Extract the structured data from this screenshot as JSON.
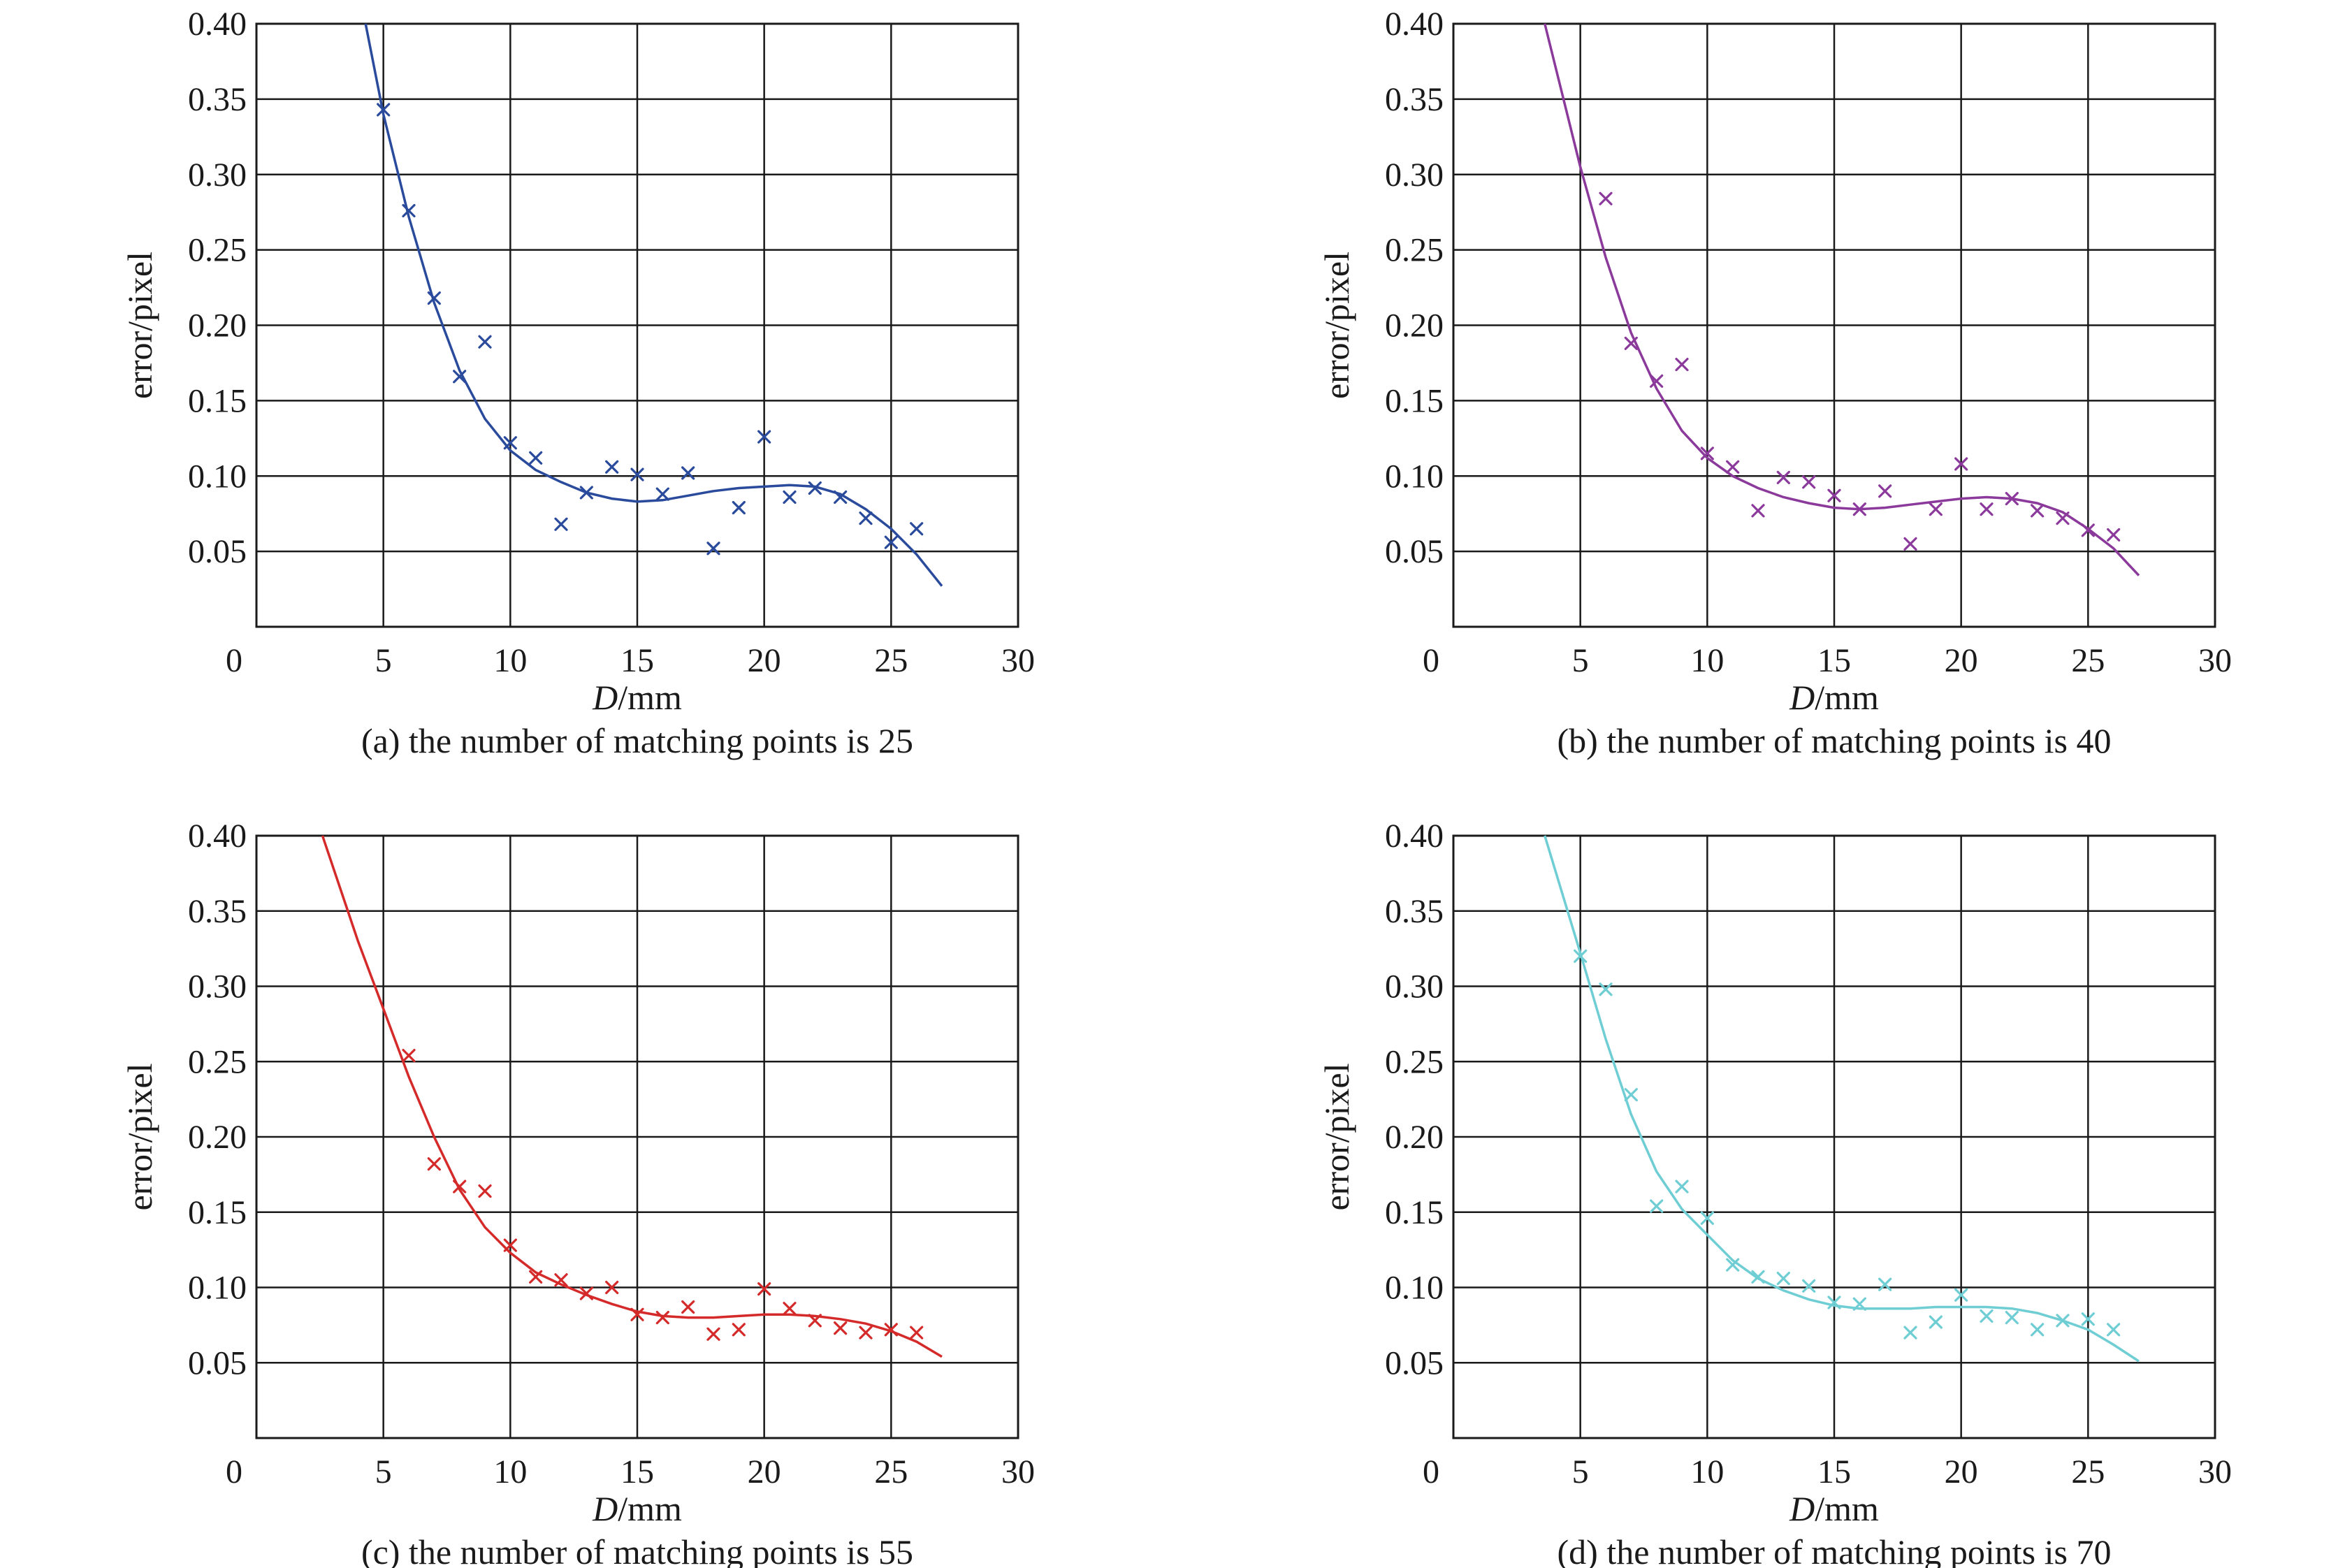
{
  "chart_data": [
    {
      "type": "scatter",
      "caption": "(a) the number of matching points is 25",
      "xlabel_italic": "D",
      "xlabel_unit": "/mm",
      "ylabel": "error/pixel",
      "xlim": [
        0,
        30
      ],
      "ylim": [
        0,
        0.4
      ],
      "xticks": [
        "0",
        "5",
        "10",
        "15",
        "20",
        "25",
        "30"
      ],
      "yticks": [
        "0.05",
        "0.10",
        "0.15",
        "0.20",
        "0.25",
        "0.30",
        "0.35",
        "0.40"
      ],
      "grid": true,
      "color": "#2a4a9c",
      "series": [
        {
          "x": [
            5,
            6,
            7,
            8,
            9,
            10,
            11,
            12,
            13,
            14,
            15,
            16,
            17,
            18,
            19,
            20,
            21,
            22,
            23,
            24,
            25,
            26
          ],
          "values": [
            0.343,
            0.276,
            0.218,
            0.166,
            0.189,
            0.122,
            0.112,
            0.068,
            0.089,
            0.106,
            0.101,
            0.088,
            0.102,
            0.052,
            0.079,
            0.126,
            0.086,
            0.092,
            0.086,
            0.072,
            0.056,
            0.065
          ]
        }
      ],
      "fit": {
        "x": [
          4.3,
          5,
          6,
          7,
          8,
          9,
          10,
          11,
          12,
          13,
          14,
          15,
          16,
          17,
          18,
          19,
          20,
          21,
          22,
          23,
          24,
          25,
          26,
          27
        ],
        "values": [
          0.4,
          0.34,
          0.272,
          0.215,
          0.17,
          0.138,
          0.117,
          0.104,
          0.096,
          0.089,
          0.085,
          0.083,
          0.084,
          0.087,
          0.09,
          0.092,
          0.093,
          0.094,
          0.093,
          0.088,
          0.078,
          0.065,
          0.048,
          0.027
        ]
      }
    },
    {
      "type": "scatter",
      "caption": "(b) the number of matching points is 40",
      "xlabel_italic": "D",
      "xlabel_unit": "/mm",
      "ylabel": "error/pixel",
      "xlim": [
        0,
        30
      ],
      "ylim": [
        0,
        0.4
      ],
      "xticks": [
        "0",
        "5",
        "10",
        "15",
        "20",
        "25",
        "30"
      ],
      "yticks": [
        "0.05",
        "0.10",
        "0.15",
        "0.20",
        "0.25",
        "0.30",
        "0.35",
        "0.40"
      ],
      "grid": true,
      "color": "#8b3a9c",
      "series": [
        {
          "x": [
            6,
            7,
            8,
            9,
            10,
            11,
            12,
            13,
            14,
            15,
            16,
            17,
            18,
            19,
            20,
            21,
            22,
            23,
            24,
            25,
            26
          ],
          "values": [
            0.284,
            0.188,
            0.163,
            0.174,
            0.115,
            0.106,
            0.077,
            0.099,
            0.096,
            0.087,
            0.078,
            0.09,
            0.055,
            0.078,
            0.108,
            0.078,
            0.085,
            0.077,
            0.072,
            0.064,
            0.061
          ]
        }
      ],
      "fit": {
        "x": [
          3.6,
          5,
          6,
          7,
          8,
          9,
          10,
          11,
          12,
          13,
          14,
          15,
          16,
          17,
          18,
          19,
          20,
          21,
          22,
          23,
          24,
          25,
          26,
          27
        ],
        "values": [
          0.4,
          0.305,
          0.245,
          0.195,
          0.158,
          0.13,
          0.112,
          0.1,
          0.092,
          0.086,
          0.082,
          0.079,
          0.078,
          0.079,
          0.081,
          0.083,
          0.085,
          0.086,
          0.085,
          0.082,
          0.076,
          0.065,
          0.052,
          0.034
        ]
      }
    },
    {
      "type": "scatter",
      "caption": "(c) the number of matching points is 55",
      "xlabel_italic": "D",
      "xlabel_unit": "/mm",
      "ylabel": "error/pixel",
      "xlim": [
        0,
        30
      ],
      "ylim": [
        0,
        0.4
      ],
      "xticks": [
        "0",
        "5",
        "10",
        "15",
        "20",
        "25",
        "30"
      ],
      "yticks": [
        "0.05",
        "0.10",
        "0.15",
        "0.20",
        "0.25",
        "0.30",
        "0.35",
        "0.40"
      ],
      "grid": true,
      "color": "#d42a2a",
      "series": [
        {
          "x": [
            6,
            7,
            8,
            9,
            10,
            11,
            12,
            13,
            14,
            15,
            16,
            17,
            18,
            19,
            20,
            21,
            22,
            23,
            24,
            25,
            26
          ],
          "values": [
            0.254,
            0.182,
            0.167,
            0.164,
            0.128,
            0.107,
            0.105,
            0.096,
            0.1,
            0.082,
            0.08,
            0.087,
            0.069,
            0.072,
            0.099,
            0.086,
            0.078,
            0.073,
            0.07,
            0.072,
            0.07
          ]
        }
      ],
      "fit": {
        "x": [
          2.6,
          4,
          5,
          6,
          7,
          8,
          9,
          10,
          11,
          12,
          13,
          14,
          15,
          16,
          17,
          18,
          19,
          20,
          21,
          22,
          23,
          24,
          25,
          26,
          27
        ],
        "values": [
          0.4,
          0.33,
          0.285,
          0.24,
          0.2,
          0.165,
          0.14,
          0.123,
          0.11,
          0.102,
          0.095,
          0.089,
          0.084,
          0.081,
          0.08,
          0.08,
          0.081,
          0.082,
          0.082,
          0.081,
          0.079,
          0.076,
          0.071,
          0.064,
          0.054
        ]
      }
    },
    {
      "type": "scatter",
      "caption": "(d) the number of matching points is 70",
      "xlabel_italic": "D",
      "xlabel_unit": "/mm",
      "ylabel": "error/pixel",
      "xlim": [
        0,
        30
      ],
      "ylim": [
        0,
        0.4
      ],
      "xticks": [
        "0",
        "5",
        "10",
        "15",
        "20",
        "25",
        "30"
      ],
      "yticks": [
        "0.05",
        "0.10",
        "0.15",
        "0.20",
        "0.25",
        "0.30",
        "0.35",
        "0.40"
      ],
      "grid": true,
      "color": "#6fcdd4",
      "series": [
        {
          "x": [
            5,
            6,
            7,
            8,
            9,
            10,
            11,
            12,
            13,
            14,
            15,
            16,
            17,
            18,
            19,
            20,
            21,
            22,
            23,
            24,
            25,
            26
          ],
          "values": [
            0.32,
            0.298,
            0.228,
            0.154,
            0.167,
            0.146,
            0.115,
            0.107,
            0.106,
            0.101,
            0.09,
            0.089,
            0.102,
            0.07,
            0.077,
            0.095,
            0.081,
            0.08,
            0.072,
            0.078,
            0.079,
            0.072
          ]
        }
      ],
      "fit": {
        "x": [
          3.6,
          5,
          6,
          7,
          8,
          9,
          10,
          11,
          12,
          13,
          14,
          15,
          16,
          17,
          18,
          19,
          20,
          21,
          22,
          23,
          24,
          25,
          26,
          27
        ],
        "values": [
          0.4,
          0.322,
          0.265,
          0.215,
          0.177,
          0.152,
          0.135,
          0.118,
          0.106,
          0.098,
          0.092,
          0.088,
          0.086,
          0.086,
          0.086,
          0.087,
          0.087,
          0.087,
          0.086,
          0.083,
          0.078,
          0.072,
          0.062,
          0.051
        ]
      }
    }
  ]
}
